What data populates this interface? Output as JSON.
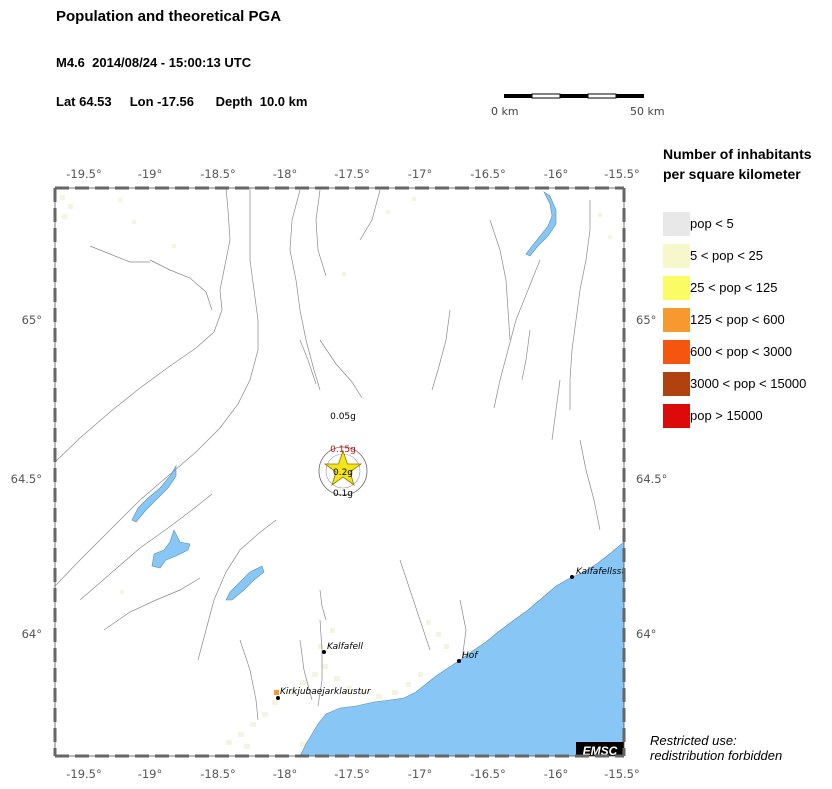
{
  "header": {
    "title": "Population and theoretical PGA",
    "magnitude_time": "M4.6  2014/08/24 - 15:00:13 UTC",
    "location": "Lat 64.53     Lon -17.56      Depth  10.0 km"
  },
  "scale_bar": {
    "start_label": "0 km",
    "end_label": "50 km"
  },
  "map": {
    "lon_range": [
      -19.7,
      -15.5
    ],
    "lat_range": [
      63.6,
      65.4
    ],
    "x_ticks": [
      "-19.5°",
      "-19°",
      "-18.5°",
      "-18°",
      "-17.5°",
      "-17°",
      "-16.5°",
      "-16°",
      "-15.5°"
    ],
    "y_ticks": [
      "65°",
      "64.5°",
      "64°"
    ],
    "epicenter": {
      "lat": 64.53,
      "lon": -17.56
    },
    "pga_labels": [
      "0.05g",
      "0.15g",
      "0.2g",
      "0.1g"
    ],
    "towns": [
      {
        "name": "Kalfafellsst",
        "lat": 64.18,
        "lon": -15.87
      },
      {
        "name": "Kalfafell",
        "lat": 63.94,
        "lon": -17.72
      },
      {
        "name": "Hof",
        "lat": 63.91,
        "lon": -16.71
      },
      {
        "name": "Kirkjubaejarklaustur",
        "lat": 63.79,
        "lon": -18.05
      }
    ],
    "watermark": "EMSC",
    "colors": {
      "sea": "#87c6f5",
      "rivers": "#8a8a8a",
      "population_low": "#f3f5dc"
    }
  },
  "legend": {
    "title": "Number of inhabitants\nper square kilometer",
    "items": [
      {
        "label": "pop < 5",
        "color": "#e8e8e8"
      },
      {
        "label": "5 < pop < 25",
        "color": "#f7f7cc"
      },
      {
        "label": "25 < pop < 125",
        "color": "#fbfb66"
      },
      {
        "label": "125 < pop < 600",
        "color": "#f7992e"
      },
      {
        "label": "600 < pop < 3000",
        "color": "#f55510"
      },
      {
        "label": "3000 < pop < 15000",
        "color": "#b04210"
      },
      {
        "label": "pop > 15000",
        "color": "#dd0a0a"
      }
    ]
  },
  "footer": {
    "restricted_line1": "Restricted use:",
    "restricted_line2": "redistribution forbidden"
  }
}
